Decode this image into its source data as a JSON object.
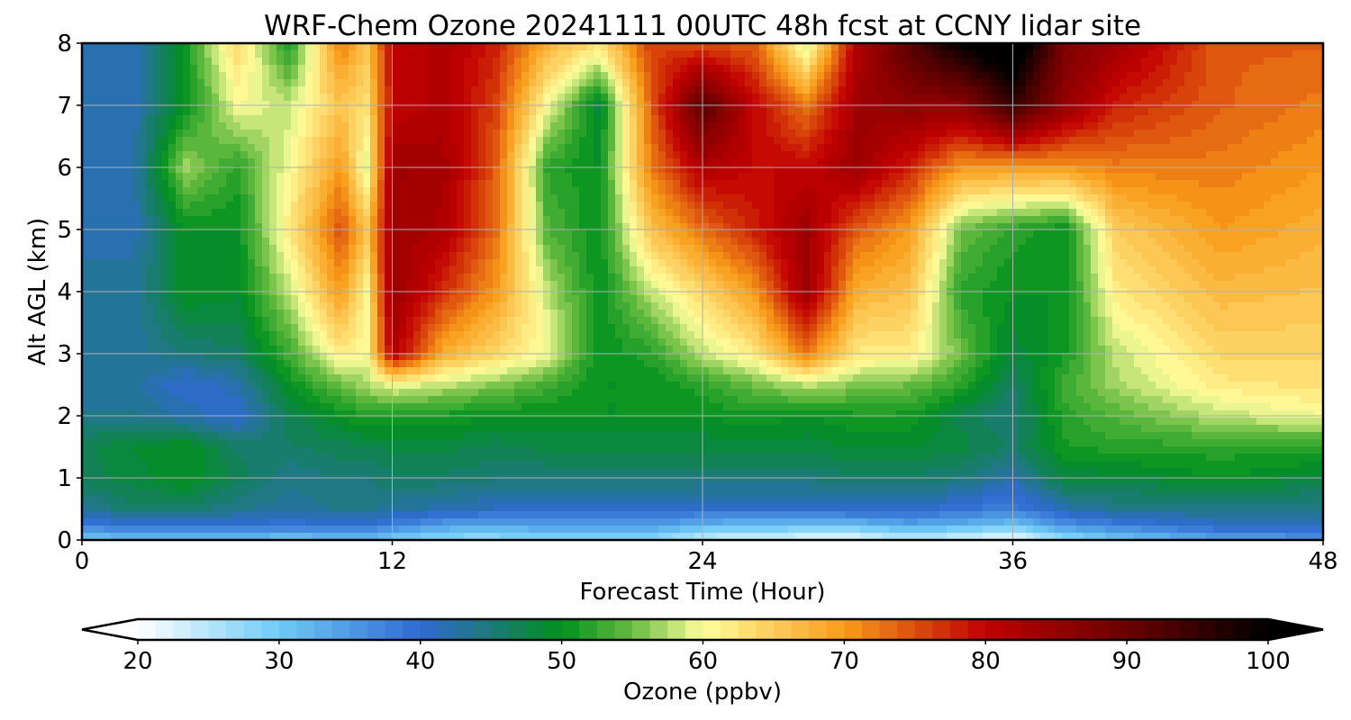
{
  "chart_data": {
    "type": "heatmap",
    "title": "WRF-Chem Ozone  20241111 00UTC 48h fcst at CCNY lidar site",
    "xlabel": "Forecast Time (Hour)",
    "ylabel": "Alt AGL (km)",
    "xlim": [
      0,
      48
    ],
    "ylim": [
      0,
      8
    ],
    "x_ticks": [
      "0",
      "12",
      "24",
      "36",
      "48"
    ],
    "x_tick_values": [
      0,
      12,
      24,
      36,
      48
    ],
    "y_ticks": [
      "0",
      "1",
      "2",
      "3",
      "4",
      "5",
      "6",
      "7",
      "8"
    ],
    "y_tick_values": [
      0,
      1,
      2,
      3,
      4,
      5,
      6,
      7,
      8
    ],
    "grid": true,
    "x_hours": [
      0,
      2,
      4,
      6,
      8,
      10,
      11,
      12,
      14,
      16,
      18,
      20,
      22,
      24,
      26,
      28,
      30,
      32,
      34,
      36,
      38,
      40,
      44,
      48
    ],
    "z_km": [
      0,
      0.25,
      0.5,
      1,
      1.5,
      2,
      2.5,
      3,
      4,
      5,
      6,
      7,
      8
    ],
    "ozone_ppbv": [
      [
        30,
        38,
        43,
        47,
        47,
        44,
        43,
        43,
        43,
        42,
        42,
        42,
        42
      ],
      [
        31,
        40,
        46,
        48,
        49,
        44,
        43,
        43,
        43,
        42,
        42,
        42,
        42
      ],
      [
        31,
        40,
        46,
        50,
        50,
        42,
        40,
        45,
        50,
        50,
        57,
        50,
        51
      ],
      [
        31,
        40,
        44,
        47,
        46,
        40,
        42,
        46,
        49,
        50,
        52,
        60,
        64
      ],
      [
        30,
        39,
        43,
        44,
        46,
        47,
        50,
        53,
        58,
        62,
        60,
        58,
        51
      ],
      [
        31,
        40,
        44,
        45,
        47,
        50,
        55,
        62,
        70,
        75,
        70,
        66,
        72
      ],
      [
        31,
        40,
        44,
        45,
        47,
        52,
        57,
        60,
        61,
        66,
        59,
        63,
        66
      ],
      [
        29,
        38,
        43,
        46,
        48,
        51,
        60,
        82,
        85,
        84,
        84,
        80,
        80
      ],
      [
        27,
        35,
        42,
        46,
        48,
        51,
        58,
        68,
        77,
        82,
        83,
        82,
        82
      ],
      [
        27,
        34,
        41,
        45,
        47,
        50,
        56,
        64,
        70,
        73,
        74,
        76,
        78
      ],
      [
        28,
        35,
        41,
        45,
        48,
        50,
        53,
        60,
        58,
        54,
        52,
        60,
        68
      ],
      [
        28,
        35,
        41,
        45,
        48,
        50,
        50,
        50,
        50,
        50,
        50,
        48,
        63
      ],
      [
        28,
        35,
        41,
        45,
        48,
        50,
        50,
        52,
        58,
        66,
        72,
        74,
        76
      ],
      [
        23,
        33,
        40,
        45,
        48,
        50,
        52,
        58,
        64,
        73,
        82,
        92,
        75
      ],
      [
        22,
        32,
        40,
        45,
        48,
        51,
        55,
        62,
        70,
        78,
        80,
        80,
        74
      ],
      [
        21,
        32,
        40,
        45,
        48,
        50,
        58,
        72,
        84,
        84,
        80,
        72,
        58
      ],
      [
        21,
        32,
        41,
        46,
        49,
        51,
        56,
        62,
        68,
        74,
        84,
        84,
        82
      ],
      [
        24,
        34,
        41,
        46,
        49,
        51,
        55,
        62,
        66,
        70,
        78,
        86,
        92
      ],
      [
        22,
        33,
        39,
        45,
        48,
        47,
        52,
        55,
        52,
        55,
        70,
        86,
        100
      ],
      [
        20,
        31,
        38,
        42,
        46,
        45,
        46,
        48,
        50,
        52,
        70,
        95,
        105
      ],
      [
        27,
        36,
        42,
        48,
        51,
        52,
        53,
        51,
        50,
        50,
        70,
        85,
        88
      ],
      [
        30,
        38,
        44,
        48,
        52,
        54,
        57,
        58,
        62,
        65,
        72,
        78,
        84
      ],
      [
        34,
        41,
        44,
        50,
        52,
        58,
        62,
        64,
        67,
        70,
        72,
        74,
        74
      ],
      [
        35,
        42,
        44,
        48,
        52,
        60,
        63,
        64,
        66,
        68,
        70,
        72,
        74
      ]
    ],
    "colorbar": {
      "label": "Ozone  (ppbv)",
      "min": 20,
      "max": 100,
      "ticks": [
        "20",
        "30",
        "40",
        "50",
        "60",
        "70",
        "80",
        "90",
        "100"
      ],
      "tick_values": [
        20,
        30,
        40,
        50,
        60,
        70,
        80,
        90,
        100
      ],
      "extend": "both",
      "levels": 64,
      "colors": [
        {
          "v": 20,
          "c": "#ffffff"
        },
        {
          "v": 30,
          "c": "#6ecbf5"
        },
        {
          "v": 40,
          "c": "#2f6ad2"
        },
        {
          "v": 45,
          "c": "#1d7a78"
        },
        {
          "v": 50,
          "c": "#00901d"
        },
        {
          "v": 55,
          "c": "#68bd40"
        },
        {
          "v": 60,
          "c": "#fffe9c"
        },
        {
          "v": 70,
          "c": "#f99c1a"
        },
        {
          "v": 80,
          "c": "#c00000"
        },
        {
          "v": 90,
          "c": "#6a0000"
        },
        {
          "v": 100,
          "c": "#000000"
        }
      ]
    }
  }
}
